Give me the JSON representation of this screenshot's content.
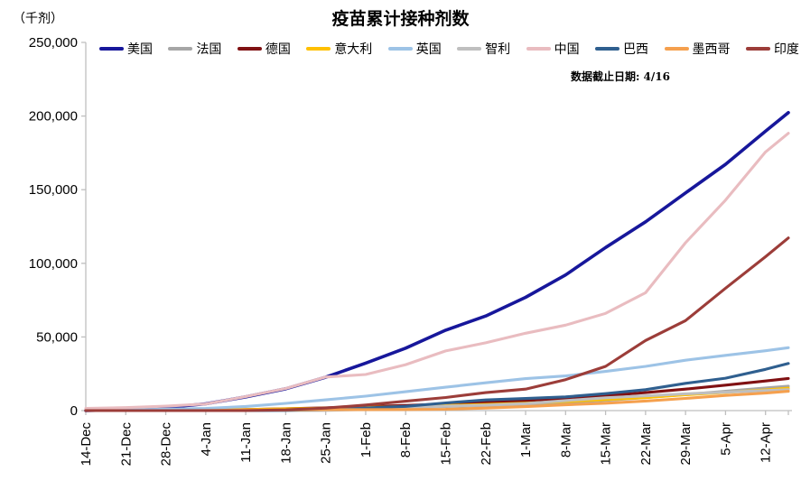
{
  "chart_data": {
    "type": "line",
    "title": "疫苗累计接种剂数",
    "unit_label": "（千剂）",
    "note": "数据截止日期:  4/16",
    "ylabel": "",
    "xlabel": "",
    "ylim": [
      0,
      250000
    ],
    "grid": false,
    "legend_position": "top",
    "axis_color": "#BFBFBF",
    "y_ticks": [
      {
        "value": 0,
        "label": "0"
      },
      {
        "value": 50000,
        "label": "50,000"
      },
      {
        "value": 100000,
        "label": "100,000"
      },
      {
        "value": 150000,
        "label": "150,000"
      },
      {
        "value": 200000,
        "label": "200,000"
      },
      {
        "value": 250000,
        "label": "250,000"
      }
    ],
    "x_tick_labels": [
      "14-Dec",
      "21-Dec",
      "28-Dec",
      "4-Jan",
      "11-Jan",
      "18-Jan",
      "25-Jan",
      "1-Feb",
      "8-Feb",
      "15-Feb",
      "22-Feb",
      "1-Mar",
      "8-Mar",
      "15-Mar",
      "22-Mar",
      "29-Mar",
      "5-Apr",
      "12-Apr"
    ],
    "x_tick_days": [
      0,
      7,
      14,
      21,
      28,
      35,
      42,
      49,
      56,
      63,
      70,
      77,
      84,
      91,
      98,
      105,
      112,
      119
    ],
    "dates": [
      "14-Dec",
      "21-Dec",
      "28-Dec",
      "4-Jan",
      "11-Jan",
      "18-Jan",
      "25-Jan",
      "1-Feb",
      "8-Feb",
      "15-Feb",
      "22-Feb",
      "1-Mar",
      "8-Mar",
      "15-Mar",
      "22-Mar",
      "29-Mar",
      "5-Apr",
      "12-Apr",
      "16-Apr"
    ],
    "days": [
      0,
      7,
      14,
      21,
      28,
      35,
      42,
      49,
      56,
      63,
      70,
      77,
      84,
      91,
      98,
      105,
      112,
      119,
      123
    ],
    "series": [
      {
        "key": "usa",
        "name": "美国",
        "color": "#17179B",
        "values": [
          0,
          600,
          2100,
          4600,
          9300,
          14800,
          22700,
          32200,
          42400,
          54600,
          64200,
          76900,
          92100,
          110700,
          128200,
          147800,
          167200,
          189700,
          202300
        ]
      },
      {
        "key": "france",
        "name": "法国",
        "color": "#A6A6A6",
        "values": [
          0,
          0,
          0,
          100,
          250,
          600,
          1100,
          1600,
          2200,
          2800,
          3500,
          4400,
          5500,
          6900,
          8800,
          10900,
          13100,
          15400,
          16600
        ]
      },
      {
        "key": "germany",
        "name": "德国",
        "color": "#801113",
        "values": [
          0,
          0,
          200,
          400,
          750,
          1300,
          1900,
          2700,
          3500,
          4400,
          5500,
          6700,
          8300,
          10100,
          12200,
          14600,
          17300,
          20100,
          21800
        ]
      },
      {
        "key": "italy",
        "name": "意大利",
        "color": "#FFC000",
        "values": [
          0,
          0,
          50,
          350,
          750,
          1250,
          1650,
          2150,
          2750,
          3450,
          4150,
          5000,
          6150,
          7500,
          8800,
          10700,
          12400,
          14100,
          15200
        ]
      },
      {
        "key": "uk",
        "name": "英国",
        "color": "#9DC3E6",
        "values": [
          0,
          500,
          1000,
          1500,
          2800,
          4900,
          7300,
          9800,
          12800,
          15900,
          18900,
          21700,
          23500,
          26600,
          30000,
          34200,
          37500,
          40600,
          42700
        ]
      },
      {
        "key": "chile",
        "name": "智利",
        "color": "#BFBFBF",
        "values": [
          0,
          0,
          0,
          20,
          40,
          60,
          100,
          800,
          2000,
          3000,
          3700,
          4700,
          6800,
          8700,
          10000,
          11400,
          12500,
          13600,
          14200
        ]
      },
      {
        "key": "china",
        "name": "中国",
        "color": "#E9BCC0",
        "values": [
          1500,
          2000,
          3000,
          4500,
          9500,
          15000,
          22800,
          24500,
          31200,
          40500,
          46000,
          52500,
          58000,
          66000,
          80000,
          114000,
          142900,
          175600,
          188300
        ]
      },
      {
        "key": "brazil",
        "name": "巴西",
        "color": "#2F5F8F",
        "values": [
          0,
          0,
          0,
          0,
          0,
          200,
          700,
          1800,
          2900,
          5200,
          7200,
          8200,
          9300,
          11500,
          14200,
          18500,
          22000,
          28000,
          32000
        ]
      },
      {
        "key": "mexico",
        "name": "墨西哥",
        "color": "#F5A04E",
        "values": [
          0,
          0,
          30,
          80,
          450,
          500,
          650,
          700,
          750,
          900,
          1700,
          2700,
          3900,
          5000,
          6500,
          8300,
          10300,
          11900,
          13100
        ]
      },
      {
        "key": "india",
        "name": "印度",
        "color": "#9C3D39",
        "values": [
          0,
          0,
          0,
          0,
          0,
          500,
          1700,
          3800,
          6400,
          8900,
          12200,
          14600,
          21000,
          30000,
          47600,
          61100,
          83100,
          104500,
          117200
        ]
      }
    ]
  }
}
